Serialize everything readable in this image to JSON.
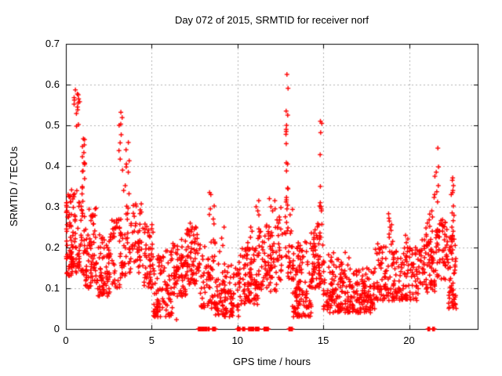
{
  "chart_data": {
    "type": "scatter",
    "title": "Day 072 of 2015, SRMTID for receiver norf",
    "xlabel": "GPS time / hours",
    "ylabel": "SRMTID / TECUs",
    "xlim": [
      0,
      24
    ],
    "ylim": [
      0,
      0.7
    ],
    "xticks": [
      0,
      5,
      10,
      15,
      20
    ],
    "xtick_labels": [
      "0",
      "5",
      "10",
      "15",
      "20"
    ],
    "yticks": [
      0,
      0.1,
      0.2,
      0.3,
      0.4,
      0.5,
      0.6,
      0.7
    ],
    "ytick_labels": [
      "0",
      "0.1",
      "0.2",
      "0.3",
      "0.4",
      "0.5",
      "0.6",
      "0.7"
    ],
    "grid": true,
    "legend": "none",
    "marker": "plus",
    "marker_color": "#ff0000",
    "marker_size_px": 7,
    "grid_color": "#b0b0b0",
    "border_color": "#000000",
    "background_color": "#ffffff",
    "spike_points": [
      {
        "x0": 0.45,
        "x1": 0.8,
        "values": [
          0.587,
          0.577,
          0.575,
          0.568,
          0.565,
          0.562,
          0.558,
          0.555,
          0.552,
          0.545,
          0.538,
          0.529,
          0.502,
          0.498
        ]
      },
      {
        "x0": 0.95,
        "x1": 1.12,
        "values": [
          0.467,
          0.465,
          0.452,
          0.448,
          0.433,
          0.423,
          0.408,
          0.407,
          0.404,
          0.388,
          0.387,
          0.369
        ]
      },
      {
        "x0": 3.08,
        "x1": 3.28,
        "values": [
          0.532,
          0.519,
          0.503,
          0.5,
          0.477,
          0.457,
          0.438,
          0.417
        ]
      },
      {
        "x0": 3.3,
        "x1": 3.75,
        "values": [
          0.458,
          0.44,
          0.413,
          0.405,
          0.398,
          0.39,
          0.385,
          0.352,
          0.34,
          0.332
        ]
      },
      {
        "x0": 6.05,
        "x1": 6.45,
        "values": [
          0.023,
          0.04
        ]
      },
      {
        "x0": 8.35,
        "x1": 8.65,
        "values": [
          0.335,
          0.33,
          0.302,
          0.295,
          0.281,
          0.27,
          0.258
        ]
      },
      {
        "x0": 8.95,
        "x1": 9.35,
        "values": [
          0.25,
          0.223,
          0.205,
          0.19
        ]
      },
      {
        "x0": 10.4,
        "x1": 10.9,
        "values": [
          0.25,
          0.24,
          0.225,
          0.212,
          0.2
        ]
      },
      {
        "x0": 11.0,
        "x1": 11.3,
        "values": [
          0.315,
          0.3,
          0.29,
          0.28
        ]
      },
      {
        "x0": 11.85,
        "x1": 12.05,
        "values": [
          0.32,
          0.3,
          0.29
        ]
      },
      {
        "x0": 12.15,
        "x1": 12.45,
        "values": [
          0.315,
          0.295,
          0.275,
          0.26,
          0.25
        ]
      },
      {
        "x0": 12.82,
        "x1": 12.95,
        "values": [
          0.625,
          0.591,
          0.535,
          0.525,
          0.5,
          0.49,
          0.485,
          0.478,
          0.455,
          0.408,
          0.405,
          0.388,
          0.346,
          0.344,
          0.323,
          0.317,
          0.312,
          0.304
        ]
      },
      {
        "x0": 14.78,
        "x1": 14.92,
        "values": [
          0.51,
          0.505,
          0.482,
          0.428,
          0.35,
          0.31,
          0.302,
          0.3,
          0.295,
          0.29
        ]
      },
      {
        "x0": 18.75,
        "x1": 19.05,
        "values": [
          0.283,
          0.272,
          0.265,
          0.256,
          0.25,
          0.242,
          0.233,
          0.225,
          0.215,
          0.208
        ]
      },
      {
        "x0": 19.78,
        "x1": 19.95,
        "values": [
          0.23,
          0.221,
          0.212,
          0.2,
          0.19
        ]
      },
      {
        "x0": 20.9,
        "x1": 21.45,
        "values": [
          0.29,
          0.282,
          0.275,
          0.268,
          0.26,
          0.252,
          0.248,
          0.24,
          0.232,
          0.228,
          0.22,
          0.212,
          0.205
        ]
      },
      {
        "x0": 21.45,
        "x1": 21.72,
        "values": [
          0.444,
          0.398,
          0.385,
          0.375,
          0.352,
          0.337,
          0.33,
          0.323,
          0.312
        ]
      },
      {
        "x0": 22.45,
        "x1": 22.62,
        "values": [
          0.371,
          0.365,
          0.352,
          0.34,
          0.335,
          0.33,
          0.302,
          0.285,
          0.279,
          0.266,
          0.25,
          0.24
        ]
      },
      {
        "x0": 22.45,
        "x1": 22.6,
        "values": [
          0.106,
          0.1,
          0.096,
          0.083,
          0.065,
          0.052
        ]
      }
    ],
    "density_clusters": [
      {
        "x0": 0.0,
        "x1": 0.35,
        "y0": 0.13,
        "y1": 0.33,
        "n": 55,
        "exp": 1.2
      },
      {
        "x0": 0.3,
        "x1": 1.0,
        "y0": 0.13,
        "y1": 0.35,
        "n": 70,
        "exp": 1.1
      },
      {
        "x0": 1.0,
        "x1": 1.8,
        "y0": 0.1,
        "y1": 0.3,
        "n": 80,
        "exp": 1.3
      },
      {
        "x0": 1.8,
        "x1": 2.6,
        "y0": 0.08,
        "y1": 0.24,
        "n": 70,
        "exp": 1.2
      },
      {
        "x0": 2.6,
        "x1": 3.3,
        "y0": 0.1,
        "y1": 0.27,
        "n": 50,
        "exp": 1.1
      },
      {
        "x0": 3.3,
        "x1": 4.4,
        "y0": 0.13,
        "y1": 0.31,
        "n": 70,
        "exp": 1.1
      },
      {
        "x0": 4.4,
        "x1": 5.1,
        "y0": 0.1,
        "y1": 0.26,
        "n": 55,
        "exp": 1.2
      },
      {
        "x0": 5.1,
        "x1": 6.2,
        "y0": 0.03,
        "y1": 0.2,
        "n": 95,
        "exp": 1.5
      },
      {
        "x0": 6.2,
        "x1": 7.0,
        "y0": 0.08,
        "y1": 0.22,
        "n": 70,
        "exp": 1.2
      },
      {
        "x0": 7.0,
        "x1": 7.8,
        "y0": 0.11,
        "y1": 0.26,
        "n": 75,
        "exp": 1.2
      },
      {
        "x0": 7.8,
        "x1": 8.7,
        "y0": 0.05,
        "y1": 0.22,
        "n": 65,
        "exp": 1.4
      },
      {
        "x0": 8.7,
        "x1": 10.1,
        "y0": 0.03,
        "y1": 0.16,
        "n": 110,
        "exp": 1.4
      },
      {
        "x0": 10.1,
        "x1": 11.2,
        "y0": 0.06,
        "y1": 0.2,
        "n": 95,
        "exp": 1.3
      },
      {
        "x0": 11.2,
        "x1": 12.3,
        "y0": 0.09,
        "y1": 0.26,
        "n": 85,
        "exp": 1.3
      },
      {
        "x0": 12.3,
        "x1": 13.3,
        "y0": 0.12,
        "y1": 0.3,
        "n": 55,
        "exp": 1.3
      },
      {
        "x0": 13.2,
        "x1": 14.3,
        "y0": 0.03,
        "y1": 0.22,
        "n": 115,
        "exp": 1.5
      },
      {
        "x0": 14.3,
        "x1": 15.0,
        "y0": 0.1,
        "y1": 0.26,
        "n": 70,
        "exp": 1.3
      },
      {
        "x0": 15.0,
        "x1": 16.5,
        "y0": 0.04,
        "y1": 0.19,
        "n": 130,
        "exp": 1.5
      },
      {
        "x0": 16.5,
        "x1": 18.0,
        "y0": 0.04,
        "y1": 0.15,
        "n": 130,
        "exp": 1.4
      },
      {
        "x0": 18.0,
        "x1": 19.3,
        "y0": 0.07,
        "y1": 0.21,
        "n": 95,
        "exp": 1.3
      },
      {
        "x0": 19.3,
        "x1": 20.6,
        "y0": 0.07,
        "y1": 0.2,
        "n": 90,
        "exp": 1.3
      },
      {
        "x0": 20.6,
        "x1": 21.5,
        "y0": 0.09,
        "y1": 0.22,
        "n": 70,
        "exp": 1.2
      },
      {
        "x0": 21.5,
        "x1": 22.3,
        "y0": 0.12,
        "y1": 0.27,
        "n": 60,
        "exp": 1.1
      },
      {
        "x0": 22.3,
        "x1": 22.75,
        "y0": 0.05,
        "y1": 0.23,
        "n": 50,
        "exp": 1.2
      }
    ],
    "zero_value_runs": [
      {
        "x0": 7.72,
        "x1": 8.2,
        "n": 14
      },
      {
        "x0": 8.28,
        "x1": 8.35,
        "n": 3
      },
      {
        "x0": 8.55,
        "x1": 8.72,
        "n": 6
      },
      {
        "x0": 10.0,
        "x1": 10.15,
        "n": 5
      },
      {
        "x0": 10.3,
        "x1": 10.42,
        "n": 4
      },
      {
        "x0": 10.65,
        "x1": 10.95,
        "n": 8
      },
      {
        "x0": 11.05,
        "x1": 11.25,
        "n": 6
      },
      {
        "x0": 11.55,
        "x1": 11.8,
        "n": 7
      },
      {
        "x0": 13.0,
        "x1": 13.2,
        "n": 6
      },
      {
        "x0": 21.1,
        "x1": 21.2,
        "n": 3
      },
      {
        "x0": 21.38,
        "x1": 21.48,
        "n": 3
      }
    ]
  }
}
